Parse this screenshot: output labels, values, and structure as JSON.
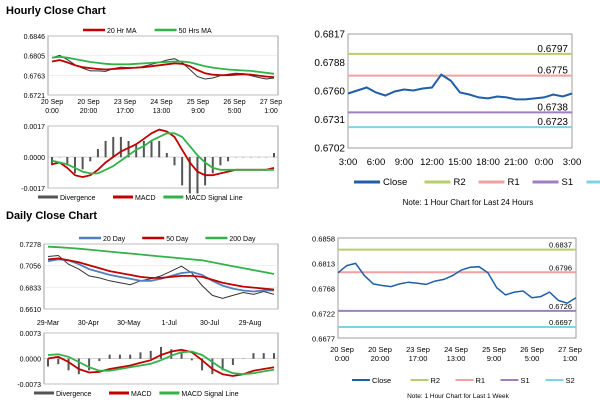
{
  "hourly": {
    "title": "Hourly Close Chart",
    "price_legend": [
      "20 Hr MA",
      "50 Hrs MA"
    ],
    "price_yticks": [
      "0.6846",
      "0.6805",
      "0.6763",
      "0.6721"
    ],
    "x_labels": [
      [
        "20 Sep",
        "0:00"
      ],
      [
        "20 Sep",
        "20:00"
      ],
      [
        "23 Sep",
        "17:00"
      ],
      [
        "24 Sep",
        "13:00"
      ],
      [
        "25 Sep",
        "9:00"
      ],
      [
        "26 Sep",
        "5:00"
      ],
      [
        "27 Sep",
        "1:00"
      ]
    ],
    "macd_yticks": [
      "0.0017",
      "0.0000",
      "-0.0017"
    ],
    "macd_legend": [
      "Divergence",
      "MACD",
      "MACD Signal Line"
    ]
  },
  "daily": {
    "title": "Daily Close Chart",
    "price_legend": [
      "20 Day",
      "50 Day",
      "200 Day"
    ],
    "price_yticks": [
      "0.7278",
      "0.7056",
      "0.6833",
      "0.6610"
    ],
    "x_labels": [
      "29-Mar",
      "30-Apr",
      "30-May",
      "1-Jul",
      "30-Jul",
      "29-Aug"
    ],
    "macd_yticks": [
      "0.0073",
      "0.0000",
      "-0.0073"
    ],
    "macd_legend": [
      "Divergence",
      "MACD",
      "MACD Signal Line"
    ]
  },
  "pivot_24h": {
    "note": "Note: 1 Hour Chart for Last 24 Hours",
    "yticks": [
      "0.6817",
      "0.6788",
      "0.6760",
      "0.6731",
      "0.6702"
    ],
    "xticks": [
      "3:00",
      "6:00",
      "9:00",
      "12:00",
      "15:00",
      "18:00",
      "21:00",
      "0:00",
      "3:00"
    ],
    "levels": [
      "0.6797",
      "0.6775",
      "0.6738",
      "0.6723"
    ],
    "legend": [
      "Close",
      "R2",
      "R1",
      "S1",
      "S2"
    ]
  },
  "pivot_week": {
    "note": "Note: 1 Hour Chart for Last 1 Week",
    "yticks": [
      "0.6858",
      "0.6813",
      "0.6768",
      "0.6722",
      "0.6677"
    ],
    "x_labels": [
      [
        "20 Sep",
        "0:00"
      ],
      [
        "20 Sep",
        "20:00"
      ],
      [
        "23 Sep",
        "17:00"
      ],
      [
        "24 Sep",
        "13:00"
      ],
      [
        "25 Sep",
        "9:00"
      ],
      [
        "26 Sep",
        "5:00"
      ],
      [
        "27 Sep",
        "1:00"
      ]
    ],
    "levels": [
      "0.6837",
      "0.6796",
      "0.6726",
      "0.6697"
    ],
    "legend": [
      "Close",
      "R2",
      "R1",
      "S1",
      "S2"
    ]
  },
  "colors": {
    "close": "#1f5fa8",
    "ma_fast": "#c00000",
    "ma_slow": "#33b24a",
    "ma_blue": "#4f81bd",
    "r2": "#b5cf6b",
    "r1": "#f2a0a0",
    "s1": "#a07fc0",
    "s2": "#7fd3e8",
    "grid": "#bbbbbb"
  },
  "chart_data": [
    {
      "id": "hourly-price",
      "type": "line",
      "ylim": [
        0.6721,
        0.6846
      ],
      "series": [
        {
          "name": "20 Hr MA",
          "color": "#c00000",
          "values": [
            0.6792,
            0.6795,
            0.679,
            0.6784,
            0.678,
            0.6778,
            0.6776,
            0.6775,
            0.6776,
            0.6777,
            0.6778,
            0.6779,
            0.678,
            0.6782,
            0.6784,
            0.6786,
            0.6788,
            0.6787,
            0.6782,
            0.6774,
            0.6767,
            0.6764,
            0.6763,
            0.6763,
            0.6764,
            0.6765,
            0.6764,
            0.6762,
            0.676,
            0.6759
          ]
        },
        {
          "name": "50 Hrs MA",
          "color": "#33b24a",
          "values": [
            0.68,
            0.6802,
            0.68,
            0.6797,
            0.6794,
            0.6791,
            0.6789,
            0.6787,
            0.6786,
            0.6786,
            0.6786,
            0.6787,
            0.6788,
            0.6789,
            0.679,
            0.6791,
            0.6792,
            0.6792,
            0.679,
            0.6786,
            0.6782,
            0.6779,
            0.6777,
            0.6775,
            0.6774,
            0.6773,
            0.6772,
            0.677,
            0.6768,
            0.6766
          ]
        }
      ],
      "ohlc_close": [
        0.68,
        0.6805,
        0.6796,
        0.6785,
        0.6778,
        0.6772,
        0.6772,
        0.6771,
        0.6777,
        0.678,
        0.6779,
        0.6778,
        0.6782,
        0.6786,
        0.679,
        0.6795,
        0.6798,
        0.679,
        0.6775,
        0.676,
        0.6755,
        0.6757,
        0.6762,
        0.6765,
        0.6767,
        0.6766,
        0.6762,
        0.6758,
        0.6755,
        0.6757
      ]
    },
    {
      "id": "hourly-macd",
      "type": "line",
      "ylim": [
        -0.0017,
        0.0017
      ],
      "series": [
        {
          "name": "MACD",
          "color": "#c00000",
          "values": [
            -0.0004,
            -0.0003,
            -0.0006,
            -0.001,
            -0.0011,
            -0.001,
            -0.0007,
            -0.0003,
            0.0,
            0.0003,
            0.0005,
            0.0007,
            0.001,
            0.0013,
            0.0015,
            0.0014,
            0.0011,
            0.0004,
            -0.0003,
            -0.0008,
            -0.001,
            -0.001,
            -0.0009,
            -0.0008,
            -0.0007,
            -0.0007,
            -0.0007,
            -0.0007,
            -0.0007,
            -0.0006
          ]
        },
        {
          "name": "MACD Signal Line",
          "color": "#33b24a",
          "values": [
            -0.0002,
            -0.0003,
            -0.0004,
            -0.0006,
            -0.0008,
            -0.0009,
            -0.0009,
            -0.0007,
            -0.0005,
            -0.0002,
            0.0001,
            0.0004,
            0.0006,
            0.0009,
            0.0011,
            0.0013,
            0.0013,
            0.0011,
            0.0006,
            0.0001,
            -0.0003,
            -0.0006,
            -0.0007,
            -0.0007,
            -0.0007,
            -0.0007,
            -0.0007,
            -0.0007,
            -0.0007,
            -0.0007
          ]
        }
      ]
    },
    {
      "id": "daily-price",
      "type": "line",
      "ylim": [
        0.661,
        0.7278
      ],
      "series": [
        {
          "name": "20 Day",
          "color": "#4f81bd",
          "values": [
            0.71,
            0.712,
            0.711,
            0.707,
            0.702,
            0.699,
            0.696,
            0.694,
            0.692,
            0.69,
            0.69,
            0.692,
            0.695,
            0.698,
            0.699,
            0.696,
            0.69,
            0.685,
            0.682,
            0.68,
            0.679,
            0.68,
            0.68
          ]
        },
        {
          "name": "50 Day",
          "color": "#c00000",
          "values": [
            0.712,
            0.713,
            0.711,
            0.709,
            0.706,
            0.703,
            0.7,
            0.698,
            0.696,
            0.694,
            0.693,
            0.693,
            0.694,
            0.695,
            0.695,
            0.694,
            0.691,
            0.688,
            0.686,
            0.684,
            0.683,
            0.682,
            0.681
          ]
        },
        {
          "name": "200 Day",
          "color": "#33b24a",
          "values": [
            0.725,
            0.7245,
            0.7238,
            0.723,
            0.722,
            0.721,
            0.72,
            0.719,
            0.718,
            0.717,
            0.716,
            0.715,
            0.714,
            0.713,
            0.712,
            0.711,
            0.709,
            0.707,
            0.705,
            0.703,
            0.701,
            0.699,
            0.697
          ]
        }
      ],
      "ohlc_close": [
        0.715,
        0.716,
        0.707,
        0.702,
        0.695,
        0.693,
        0.69,
        0.688,
        0.686,
        0.69,
        0.692,
        0.695,
        0.7,
        0.705,
        0.698,
        0.685,
        0.675,
        0.672,
        0.675,
        0.678,
        0.676,
        0.679,
        0.676
      ]
    },
    {
      "id": "daily-macd",
      "type": "line",
      "ylim": [
        -0.0073,
        0.0073
      ],
      "series": [
        {
          "name": "MACD",
          "color": "#c00000",
          "values": [
            0.0,
            0.0005,
            -0.001,
            -0.003,
            -0.004,
            -0.0038,
            -0.003,
            -0.0025,
            -0.002,
            -0.0012,
            -0.0005,
            0.001,
            0.002,
            0.0025,
            0.0018,
            -0.0005,
            -0.003,
            -0.0045,
            -0.005,
            -0.0045,
            -0.0035,
            -0.003,
            -0.0025
          ]
        },
        {
          "name": "MACD Signal Line",
          "color": "#33b24a",
          "values": [
            0.001,
            0.0012,
            0.0005,
            -0.001,
            -0.0025,
            -0.0035,
            -0.0035,
            -0.003,
            -0.0025,
            -0.002,
            -0.0015,
            -0.0005,
            0.0008,
            0.0018,
            0.002,
            0.001,
            -0.001,
            -0.003,
            -0.0042,
            -0.0045,
            -0.0042,
            -0.0037,
            -0.0032
          ]
        }
      ]
    },
    {
      "id": "pivot-24h",
      "type": "line",
      "ylim": [
        0.6702,
        0.6817
      ],
      "x": [
        "3:00",
        "4:00",
        "5:00",
        "6:00",
        "7:00",
        "8:00",
        "9:00",
        "10:00",
        "11:00",
        "12:00",
        "13:00",
        "14:00",
        "15:00",
        "16:00",
        "17:00",
        "18:00",
        "19:00",
        "20:00",
        "21:00",
        "22:00",
        "23:00",
        "0:00",
        "1:00",
        "2:00",
        "3:00"
      ],
      "series": [
        {
          "name": "Close",
          "color": "#1f5fa8",
          "values": [
            0.6757,
            0.676,
            0.6763,
            0.6758,
            0.6755,
            0.6759,
            0.6761,
            0.676,
            0.6762,
            0.6763,
            0.6776,
            0.677,
            0.6758,
            0.6756,
            0.6753,
            0.6752,
            0.6754,
            0.6753,
            0.6751,
            0.6751,
            0.6752,
            0.6753,
            0.6756,
            0.6754,
            0.6757
          ]
        }
      ],
      "levels": [
        {
          "name": "R2",
          "value": 0.6797,
          "color": "#b5cf6b"
        },
        {
          "name": "R1",
          "value": 0.6775,
          "color": "#f2a0a0"
        },
        {
          "name": "S1",
          "value": 0.6738,
          "color": "#a07fc0"
        },
        {
          "name": "S2",
          "value": 0.6723,
          "color": "#7fd3e8"
        }
      ]
    },
    {
      "id": "pivot-week",
      "type": "line",
      "ylim": [
        0.6677,
        0.6858
      ],
      "series": [
        {
          "name": "Close",
          "color": "#1f5fa8",
          "values": [
            0.6795,
            0.6808,
            0.6812,
            0.679,
            0.6775,
            0.6772,
            0.677,
            0.6775,
            0.6778,
            0.6776,
            0.6774,
            0.678,
            0.6783,
            0.679,
            0.68,
            0.6805,
            0.6806,
            0.6795,
            0.6768,
            0.6755,
            0.676,
            0.6762,
            0.675,
            0.6752,
            0.676,
            0.6745,
            0.674,
            0.675
          ]
        }
      ],
      "levels": [
        {
          "name": "R2",
          "value": 0.6837,
          "color": "#b5cf6b"
        },
        {
          "name": "R1",
          "value": 0.6796,
          "color": "#f2a0a0"
        },
        {
          "name": "S1",
          "value": 0.6726,
          "color": "#a07fc0"
        },
        {
          "name": "S2",
          "value": 0.6697,
          "color": "#7fd3e8"
        }
      ]
    }
  ]
}
